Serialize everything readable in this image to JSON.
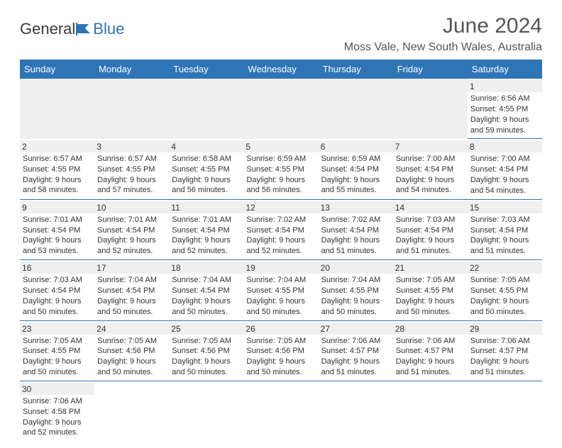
{
  "logo": {
    "text1": "General",
    "text2": "Blue"
  },
  "title": "June 2024",
  "location": "Moss Vale, New South Wales, Australia",
  "day_headers": [
    "Sunday",
    "Monday",
    "Tuesday",
    "Wednesday",
    "Thursday",
    "Friday",
    "Saturday"
  ],
  "colors": {
    "header_bg": "#2e75b6",
    "header_text": "#ffffff",
    "cell_border": "#2e75b6",
    "daynum_bg": "#efefef",
    "text": "#333333",
    "title_text": "#555555"
  },
  "weeks": [
    [
      null,
      null,
      null,
      null,
      null,
      null,
      {
        "n": "1",
        "sunrise": "6:56 AM",
        "sunset": "4:55 PM",
        "daylight": "9 hours and 59 minutes."
      }
    ],
    [
      {
        "n": "2",
        "sunrise": "6:57 AM",
        "sunset": "4:55 PM",
        "daylight": "9 hours and 58 minutes."
      },
      {
        "n": "3",
        "sunrise": "6:57 AM",
        "sunset": "4:55 PM",
        "daylight": "9 hours and 57 minutes."
      },
      {
        "n": "4",
        "sunrise": "6:58 AM",
        "sunset": "4:55 PM",
        "daylight": "9 hours and 56 minutes."
      },
      {
        "n": "5",
        "sunrise": "6:59 AM",
        "sunset": "4:55 PM",
        "daylight": "9 hours and 56 minutes."
      },
      {
        "n": "6",
        "sunrise": "6:59 AM",
        "sunset": "4:54 PM",
        "daylight": "9 hours and 55 minutes."
      },
      {
        "n": "7",
        "sunrise": "7:00 AM",
        "sunset": "4:54 PM",
        "daylight": "9 hours and 54 minutes."
      },
      {
        "n": "8",
        "sunrise": "7:00 AM",
        "sunset": "4:54 PM",
        "daylight": "9 hours and 54 minutes."
      }
    ],
    [
      {
        "n": "9",
        "sunrise": "7:01 AM",
        "sunset": "4:54 PM",
        "daylight": "9 hours and 53 minutes."
      },
      {
        "n": "10",
        "sunrise": "7:01 AM",
        "sunset": "4:54 PM",
        "daylight": "9 hours and 52 minutes."
      },
      {
        "n": "11",
        "sunrise": "7:01 AM",
        "sunset": "4:54 PM",
        "daylight": "9 hours and 52 minutes."
      },
      {
        "n": "12",
        "sunrise": "7:02 AM",
        "sunset": "4:54 PM",
        "daylight": "9 hours and 52 minutes."
      },
      {
        "n": "13",
        "sunrise": "7:02 AM",
        "sunset": "4:54 PM",
        "daylight": "9 hours and 51 minutes."
      },
      {
        "n": "14",
        "sunrise": "7:03 AM",
        "sunset": "4:54 PM",
        "daylight": "9 hours and 51 minutes."
      },
      {
        "n": "15",
        "sunrise": "7:03 AM",
        "sunset": "4:54 PM",
        "daylight": "9 hours and 51 minutes."
      }
    ],
    [
      {
        "n": "16",
        "sunrise": "7:03 AM",
        "sunset": "4:54 PM",
        "daylight": "9 hours and 50 minutes."
      },
      {
        "n": "17",
        "sunrise": "7:04 AM",
        "sunset": "4:54 PM",
        "daylight": "9 hours and 50 minutes."
      },
      {
        "n": "18",
        "sunrise": "7:04 AM",
        "sunset": "4:54 PM",
        "daylight": "9 hours and 50 minutes."
      },
      {
        "n": "19",
        "sunrise": "7:04 AM",
        "sunset": "4:55 PM",
        "daylight": "9 hours and 50 minutes."
      },
      {
        "n": "20",
        "sunrise": "7:04 AM",
        "sunset": "4:55 PM",
        "daylight": "9 hours and 50 minutes."
      },
      {
        "n": "21",
        "sunrise": "7:05 AM",
        "sunset": "4:55 PM",
        "daylight": "9 hours and 50 minutes."
      },
      {
        "n": "22",
        "sunrise": "7:05 AM",
        "sunset": "4:55 PM",
        "daylight": "9 hours and 50 minutes."
      }
    ],
    [
      {
        "n": "23",
        "sunrise": "7:05 AM",
        "sunset": "4:55 PM",
        "daylight": "9 hours and 50 minutes."
      },
      {
        "n": "24",
        "sunrise": "7:05 AM",
        "sunset": "4:56 PM",
        "daylight": "9 hours and 50 minutes."
      },
      {
        "n": "25",
        "sunrise": "7:05 AM",
        "sunset": "4:56 PM",
        "daylight": "9 hours and 50 minutes."
      },
      {
        "n": "26",
        "sunrise": "7:05 AM",
        "sunset": "4:56 PM",
        "daylight": "9 hours and 50 minutes."
      },
      {
        "n": "27",
        "sunrise": "7:06 AM",
        "sunset": "4:57 PM",
        "daylight": "9 hours and 51 minutes."
      },
      {
        "n": "28",
        "sunrise": "7:06 AM",
        "sunset": "4:57 PM",
        "daylight": "9 hours and 51 minutes."
      },
      {
        "n": "29",
        "sunrise": "7:06 AM",
        "sunset": "4:57 PM",
        "daylight": "9 hours and 51 minutes."
      }
    ],
    [
      {
        "n": "30",
        "sunrise": "7:06 AM",
        "sunset": "4:58 PM",
        "daylight": "9 hours and 52 minutes."
      },
      null,
      null,
      null,
      null,
      null,
      null
    ]
  ],
  "labels": {
    "sunrise": "Sunrise: ",
    "sunset": "Sunset: ",
    "daylight": "Daylight: "
  }
}
